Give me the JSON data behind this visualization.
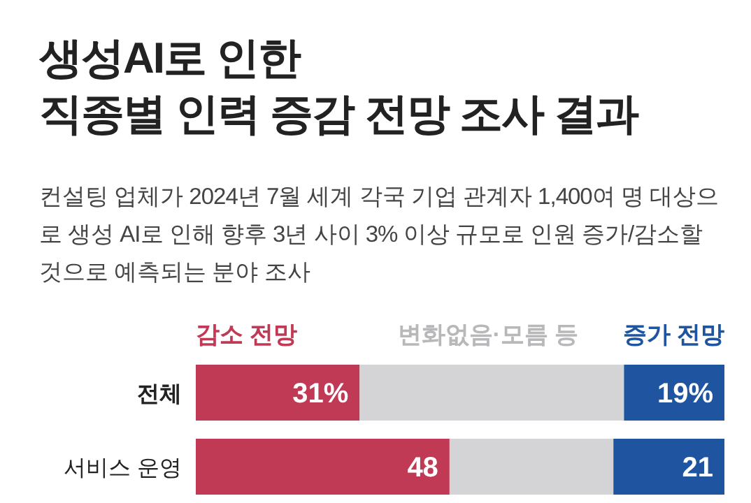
{
  "chart_data": {
    "type": "bar",
    "orientation": "horizontal",
    "stacked": true,
    "title": "생성AI로 인한\n직종별 인력 증감 전망 조사 결과",
    "subtitle": "컨설팅 업체가 2024년 7월 세계 각국 기업 관계자 1,400여 명 대상으로 생성 AI로 인해 향후 3년 사이 3% 이상 규모로 인원 증가/감소할 것으로 예측되는 분야 조사",
    "categories": [
      "전체",
      "서비스 운영"
    ],
    "legend": "top",
    "series": [
      {
        "name": "감소 전망",
        "color": "#c03a55",
        "values": [
          31,
          48
        ],
        "value_labels": [
          "31%",
          "48"
        ]
      },
      {
        "name": "변화없음·모름 등",
        "color": "#d4d4d6",
        "values": [
          50,
          31
        ],
        "value_labels": [
          null,
          null
        ]
      },
      {
        "name": "증가 전망",
        "color": "#1f55a0",
        "values": [
          19,
          21
        ],
        "value_labels": [
          "19%",
          "21"
        ]
      }
    ]
  }
}
